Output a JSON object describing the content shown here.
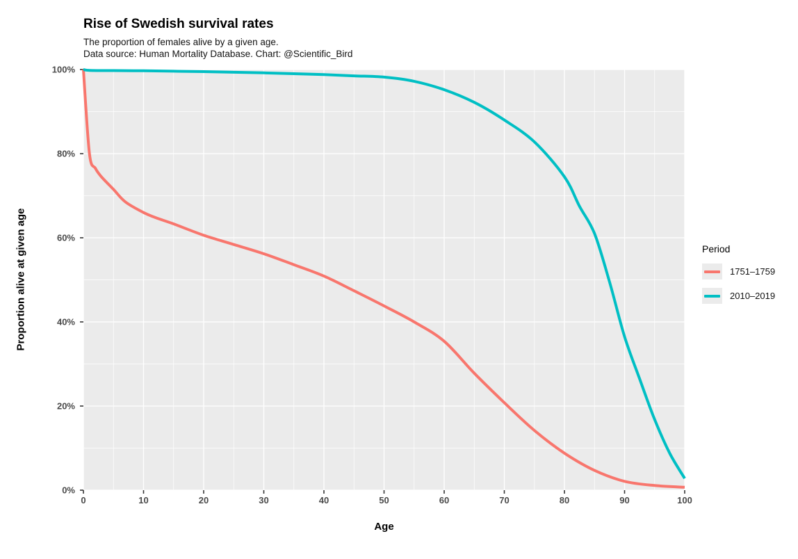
{
  "title": "Rise of Swedish survival rates",
  "subtitle_line1": "The proportion of females alive by a given age.",
  "subtitle_line2": "Data source: Human Mortality Database. Chart: @Scientific_Bird",
  "colors": {
    "panel_background": "#EBEBEB",
    "gridline": "#FFFFFF",
    "tick_mark": "#333333",
    "tick_label": "#4a4a4a",
    "series_1751": "#F8766D",
    "series_2010": "#00BFC4",
    "legend_key_background": "#EBEBEB"
  },
  "chart_data": {
    "type": "line",
    "title": "Rise of Swedish survival rates",
    "subtitle": "The proportion of females alive by a given age. Data source: Human Mortality Database. Chart: @Scientific_Bird",
    "xlabel": "Age",
    "ylabel": "Proportion alive at given age",
    "xlim": [
      0,
      100
    ],
    "ylim": [
      0,
      100
    ],
    "x_ticks": [
      0,
      10,
      20,
      30,
      40,
      50,
      60,
      70,
      80,
      90,
      100
    ],
    "y_ticks": [
      0,
      20,
      40,
      60,
      80,
      100
    ],
    "y_tick_labels": [
      "0%",
      "20%",
      "40%",
      "60%",
      "80%",
      "100%"
    ],
    "x_minor_ticks": [
      5,
      15,
      25,
      35,
      45,
      55,
      65,
      75,
      85,
      95
    ],
    "y_minor_ticks": [
      10,
      30,
      50,
      70,
      90
    ],
    "grid": "white major and minor gridlines on gray panel",
    "legend_title": "Period",
    "legend_position": "right",
    "series": [
      {
        "name": "1751–1759",
        "color": "#F8766D",
        "x": [
          0,
          1,
          2,
          3,
          5,
          7,
          10,
          12,
          15,
          20,
          25,
          30,
          35,
          40,
          45,
          50,
          55,
          60,
          65,
          70,
          75,
          80,
          85,
          90,
          95,
          100
        ],
        "y": [
          100,
          80,
          76.5,
          74.5,
          71.5,
          68.5,
          66,
          64.8,
          63.3,
          60.6,
          58.4,
          56.2,
          53.6,
          50.9,
          47.4,
          43.8,
          40,
          35.4,
          27.8,
          20.8,
          14.2,
          8.8,
          4.7,
          2.1,
          1.1,
          0.7
        ]
      },
      {
        "name": "2010–2019",
        "color": "#00BFC4",
        "x": [
          0,
          1,
          5,
          10,
          15,
          20,
          25,
          30,
          35,
          40,
          45,
          50,
          55,
          60,
          65,
          70,
          75,
          80,
          82.5,
          85,
          87.5,
          90,
          92.5,
          95,
          97.5,
          100
        ],
        "y": [
          100,
          99.8,
          99.75,
          99.7,
          99.6,
          99.5,
          99.35,
          99.2,
          99,
          98.8,
          98.5,
          98.2,
          97.2,
          95.2,
          92.2,
          88,
          82.8,
          74.5,
          67.5,
          61,
          49.5,
          36.5,
          26.5,
          16.8,
          8.8,
          2.8
        ]
      }
    ]
  }
}
